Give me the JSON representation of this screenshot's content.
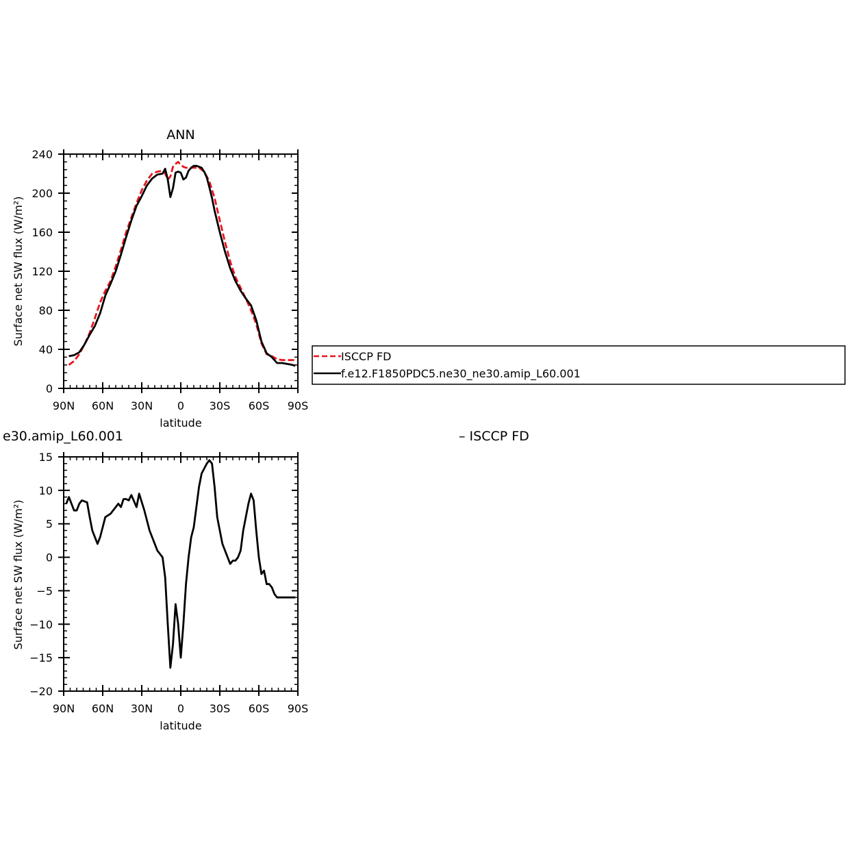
{
  "chart_data": [
    {
      "type": "line",
      "title": "ANN",
      "xlabel": "latitude",
      "ylabel": "Surface net SW flux (W/m²)",
      "xlim": [
        90,
        -90
      ],
      "ylim": [
        0,
        240
      ],
      "yticks": [
        0,
        40,
        80,
        120,
        160,
        200,
        240
      ],
      "xticks": [
        {
          "value": 90,
          "label": "90N"
        },
        {
          "value": 60,
          "label": "60N"
        },
        {
          "value": 30,
          "label": "30N"
        },
        {
          "value": 0,
          "label": "0"
        },
        {
          "value": -30,
          "label": "30S"
        },
        {
          "value": -60,
          "label": "60S"
        },
        {
          "value": -90,
          "label": "90S"
        }
      ],
      "legend": "right",
      "series": [
        {
          "name": "ISCCP FD",
          "color": "#e8141c",
          "dash": "dashed",
          "x": [
            86,
            82,
            78,
            74,
            70,
            66,
            62,
            58,
            54,
            50,
            46,
            42,
            38,
            34,
            30,
            26,
            22,
            18,
            14,
            12,
            10,
            8,
            6,
            4,
            2,
            0,
            -2,
            -4,
            -6,
            -10,
            -14,
            -18,
            -22,
            -26,
            -30,
            -34,
            -38,
            -42,
            -46,
            -50,
            -54,
            -58,
            -62,
            -66,
            -70,
            -74,
            -78,
            -82,
            -86,
            -88
          ],
          "y": [
            24,
            28,
            35,
            45,
            57,
            72,
            88,
            100,
            110,
            125,
            142,
            160,
            175,
            190,
            203,
            213,
            220,
            222,
            223,
            220,
            214,
            217,
            227,
            230,
            232,
            229,
            227,
            226,
            226,
            226,
            226,
            222,
            212,
            195,
            172,
            150,
            130,
            114,
            103,
            92,
            80,
            66,
            46,
            35,
            33,
            30,
            29,
            29,
            29,
            29
          ]
        },
        {
          "name": "f.e12.F1850PDC5.ne30_ne30.amip_L60.001",
          "color": "#000000",
          "dash": "solid",
          "x": [
            86,
            82,
            78,
            74,
            70,
            66,
            62,
            58,
            54,
            50,
            46,
            42,
            38,
            34,
            30,
            26,
            22,
            18,
            14,
            12,
            10,
            8,
            6,
            4,
            2,
            0,
            -2,
            -4,
            -6,
            -8,
            -10,
            -12,
            -14,
            -16,
            -18,
            -20,
            -22,
            -24,
            -26,
            -30,
            -34,
            -38,
            -42,
            -46,
            -50,
            -54,
            -58,
            -62,
            -66,
            -70,
            -74,
            -78,
            -82,
            -86,
            -88
          ],
          "y": [
            33,
            34,
            37,
            45,
            55,
            64,
            77,
            95,
            107,
            120,
            137,
            155,
            172,
            187,
            197,
            208,
            215,
            219,
            220,
            225,
            214,
            196,
            205,
            221,
            222,
            221,
            214,
            216,
            223,
            226,
            228,
            228,
            227,
            226,
            222,
            216,
            206,
            195,
            182,
            160,
            140,
            123,
            110,
            100,
            92,
            85,
            70,
            48,
            36,
            32,
            26,
            26,
            25,
            24,
            23
          ]
        }
      ]
    },
    {
      "type": "line",
      "title": "e30.amip_L60.001",
      "title_right": "– ISCCP FD",
      "xlabel": "latitude",
      "ylabel": "Surface net SW flux (W/m²)",
      "xlim": [
        90,
        -90
      ],
      "ylim": [
        -20,
        15
      ],
      "yticks": [
        -20,
        -15,
        -10,
        -5,
        0,
        5,
        10,
        15
      ],
      "xticks": [
        {
          "value": 90,
          "label": "90N"
        },
        {
          "value": 60,
          "label": "60N"
        },
        {
          "value": 30,
          "label": "30N"
        },
        {
          "value": 0,
          "label": "0"
        },
        {
          "value": -30,
          "label": "30S"
        },
        {
          "value": -60,
          "label": "60S"
        },
        {
          "value": -90,
          "label": "90S"
        }
      ],
      "series": [
        {
          "color": "#000000",
          "dash": "solid",
          "x": [
            88,
            86,
            82,
            80,
            78,
            76,
            72,
            70,
            68,
            66,
            64,
            62,
            58,
            54,
            52,
            50,
            48,
            46,
            44,
            42,
            40,
            38,
            34,
            32,
            28,
            24,
            22,
            20,
            18,
            16,
            14,
            12,
            10,
            8,
            6,
            4,
            2,
            0,
            -2,
            -4,
            -6,
            -8,
            -10,
            -12,
            -14,
            -16,
            -20,
            -22,
            -24,
            -26,
            -28,
            -30,
            -32,
            -34,
            -36,
            -38,
            -40,
            -42,
            -44,
            -46,
            -48,
            -50,
            -52,
            -54,
            -56,
            -58,
            -60,
            -62,
            -64,
            -66,
            -68,
            -70,
            -72,
            -74,
            -76,
            -78,
            -80,
            -82,
            -84,
            -86,
            -88
          ],
          "y": [
            8,
            9,
            7,
            7,
            8,
            8.5,
            8.2,
            6,
            4,
            3,
            2,
            3,
            6,
            6.5,
            7,
            7.5,
            8,
            7.5,
            8.7,
            8.7,
            8.5,
            9.3,
            7.5,
            9.5,
            7,
            4,
            3,
            2,
            1,
            0.5,
            0,
            -3,
            -10,
            -16.5,
            -13,
            -7,
            -10,
            -15,
            -10,
            -4,
            0,
            3,
            4.5,
            7.5,
            10.5,
            12.5,
            14,
            14.5,
            14,
            10.5,
            6,
            4,
            2,
            1,
            0,
            -1,
            -0.5,
            -0.5,
            0,
            1,
            4,
            6,
            8,
            9.5,
            8.5,
            4,
            0,
            -2.5,
            -2,
            -4,
            -4,
            -4.5,
            -5.5,
            -6,
            -6,
            -6,
            -6,
            -6,
            -6,
            -6,
            -6
          ]
        }
      ]
    }
  ],
  "legend_entries": [
    {
      "label": "ISCCP FD",
      "color": "#e8141c",
      "dash": "dashed"
    },
    {
      "label": "f.e12.F1850PDC5.ne30_ne30.amip_L60.001",
      "color": "#000000",
      "dash": "solid"
    }
  ]
}
